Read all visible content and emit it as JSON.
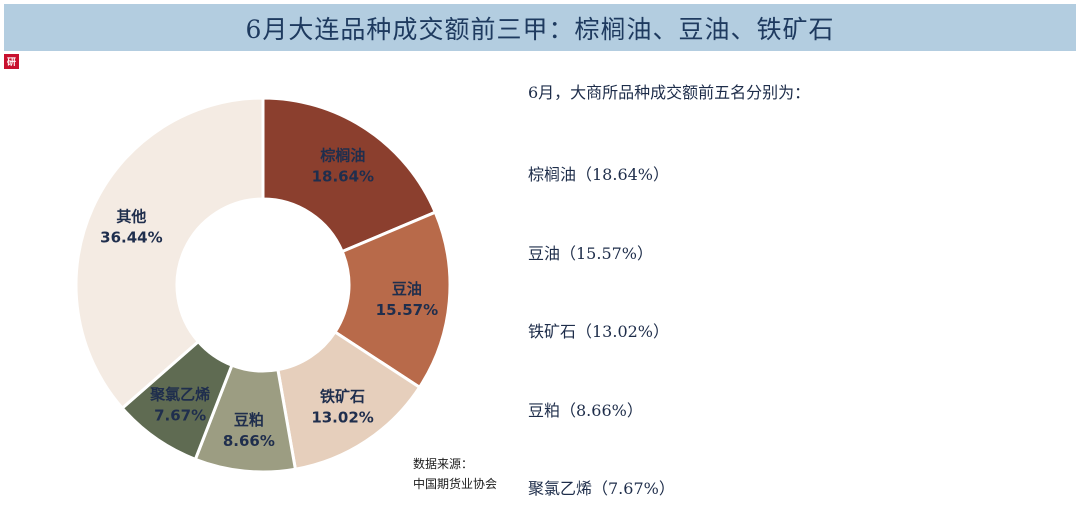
{
  "header": {
    "title": "6月大连品种成交额前三甲：棕榈油、豆油、铁矿石"
  },
  "logo": {
    "icon": "brand-logo-icon",
    "color": "#c8102e",
    "text": "研"
  },
  "chart_data": {
    "type": "pie",
    "subtype": "donut",
    "title": "",
    "slices": [
      {
        "label": "棕榈油",
        "value": 18.64,
        "value_label": "18.64%",
        "color": "#8b3f2e"
      },
      {
        "label": "豆油",
        "value": 15.57,
        "value_label": "15.57%",
        "color": "#b86a4a"
      },
      {
        "label": "铁矿石",
        "value": 13.02,
        "value_label": "13.02%",
        "color": "#e6cfbc"
      },
      {
        "label": "豆粕",
        "value": 8.66,
        "value_label": "8.66%",
        "color": "#9c9d82"
      },
      {
        "label": "聚氯乙烯",
        "value": 7.67,
        "value_label": "7.67%",
        "color": "#5f6b52"
      },
      {
        "label": "其他",
        "value": 36.44,
        "value_label": "36.44%",
        "color": "#f4ebe3"
      }
    ]
  },
  "source": {
    "line1": "数据来源：",
    "line2": "中国期货业协会"
  },
  "summary": {
    "intro": "6月，大商所品种成交额前五名分别为：",
    "items": [
      "棕榈油（18.64%）",
      "豆油（15.57%）",
      "铁矿石（13.02%）",
      "豆粕（8.66%）",
      "聚氯乙烯（7.67%）"
    ]
  }
}
